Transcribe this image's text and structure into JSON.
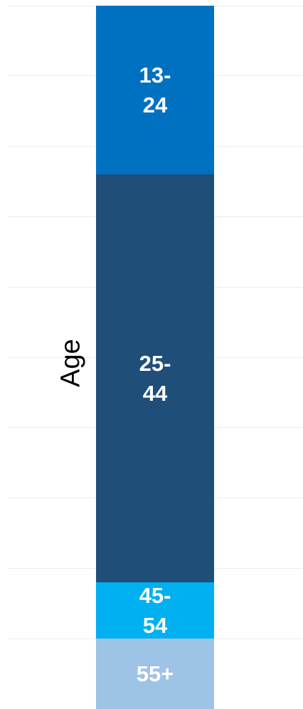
{
  "chart_data": {
    "type": "stacked_bar",
    "categories": [
      "Age"
    ],
    "series": [
      {
        "name": "55+",
        "color": "#9dc3e6",
        "values": [
          10
        ]
      },
      {
        "name": "45-54",
        "color": "#00b0f0",
        "values": [
          8
        ]
      },
      {
        "name": "25-44",
        "color": "#1f4e79",
        "values": [
          58
        ]
      },
      {
        "name": "13-24",
        "color": "#0070c0",
        "values": [
          24
        ]
      }
    ],
    "ylim": [
      0,
      100
    ],
    "yticks": [
      0,
      10,
      20,
      30,
      40,
      50,
      60,
      70,
      80,
      90,
      100
    ],
    "grid": true
  }
}
